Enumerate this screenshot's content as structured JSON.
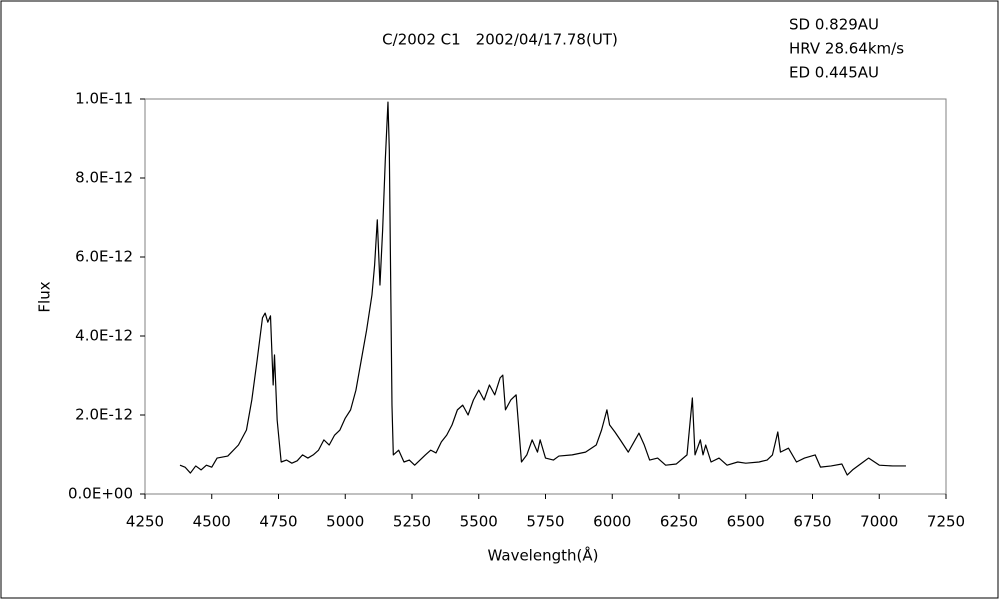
{
  "chart_data": {
    "type": "line",
    "title": "C/2002 C1　2002/04/17.78(UT)",
    "annotations": [
      "SD 0.829AU",
      "HRV 28.64km/s",
      "ED 0.445AU"
    ],
    "x_label": "Wavelength(Å)",
    "y_label": "Flux",
    "color": "#000000",
    "xlim": [
      4250,
      7250
    ],
    "xticks": [
      4250,
      4500,
      4750,
      5000,
      5250,
      5500,
      5750,
      6000,
      6250,
      6500,
      6750,
      7000,
      7250
    ],
    "ylim": [
      0,
      1e-11
    ],
    "yticks": [
      {
        "value": 0,
        "label": "0.0E+00"
      },
      {
        "value": 2e-12,
        "label": "2.0E-12"
      },
      {
        "value": 4e-12,
        "label": "4.0E-12"
      },
      {
        "value": 6e-12,
        "label": "6.0E-12"
      },
      {
        "value": 8e-12,
        "label": "8.0E-12"
      },
      {
        "value": 1e-11,
        "label": "1.0E-11"
      }
    ],
    "x": [
      4381,
      4400,
      4420,
      4440,
      4460,
      4480,
      4500,
      4520,
      4560,
      4600,
      4630,
      4650,
      4670,
      4690,
      4700,
      4710,
      4720,
      4730,
      4735,
      4745,
      4760,
      4780,
      4800,
      4820,
      4840,
      4860,
      4880,
      4900,
      4920,
      4940,
      4960,
      4980,
      5000,
      5020,
      5040,
      5060,
      5080,
      5100,
      5110,
      5120,
      5130,
      5140,
      5150,
      5160,
      5165,
      5175,
      5180,
      5200,
      5220,
      5240,
      5260,
      5280,
      5300,
      5320,
      5340,
      5360,
      5380,
      5400,
      5420,
      5440,
      5460,
      5480,
      5500,
      5520,
      5540,
      5560,
      5580,
      5590,
      5600,
      5620,
      5640,
      5660,
      5680,
      5700,
      5720,
      5730,
      5750,
      5780,
      5800,
      5850,
      5900,
      5940,
      5960,
      5980,
      5990,
      6010,
      6030,
      6060,
      6100,
      6120,
      6140,
      6170,
      6200,
      6240,
      6280,
      6300,
      6310,
      6330,
      6340,
      6350,
      6370,
      6400,
      6430,
      6470,
      6500,
      6550,
      6580,
      6600,
      6620,
      6630,
      6660,
      6690,
      6720,
      6760,
      6780,
      6820,
      6860,
      6880,
      6900,
      6940,
      6960,
      7000,
      7050,
      7100
    ],
    "values": [
      7.3e-13,
      6.8e-13,
      5.3e-13,
      7.1e-13,
      6.1e-13,
      7.3e-13,
      6.8e-13,
      9.1e-13,
      9.6e-13,
      1.24e-12,
      1.62e-12,
      2.38e-12,
      3.39e-12,
      4.46e-12,
      4.58e-12,
      4.35e-12,
      4.51e-12,
      2.76e-12,
      3.52e-12,
      1.87e-12,
      8.1e-13,
      8.6e-13,
      7.8e-13,
      8.4e-13,
      9.9e-13,
      9.1e-13,
      9.9e-13,
      1.11e-12,
      1.37e-12,
      1.24e-12,
      1.49e-12,
      1.62e-12,
      1.92e-12,
      2.13e-12,
      2.63e-12,
      3.39e-12,
      4.15e-12,
      5.04e-12,
      5.8e-12,
      6.94e-12,
      5.29e-12,
      6.68e-12,
      8.46e-12,
      9.92e-12,
      8.71e-12,
      2.25e-12,
      9.9e-13,
      1.11e-12,
      8.1e-13,
      8.6e-13,
      7.3e-13,
      8.6e-13,
      9.9e-13,
      1.11e-12,
      1.04e-12,
      1.32e-12,
      1.49e-12,
      1.75e-12,
      2.13e-12,
      2.25e-12,
      2e-12,
      2.38e-12,
      2.63e-12,
      2.38e-12,
      2.76e-12,
      2.51e-12,
      2.94e-12,
      3.01e-12,
      2.13e-12,
      2.38e-12,
      2.51e-12,
      8.1e-13,
      9.9e-13,
      1.37e-12,
      1.06e-12,
      1.37e-12,
      9.1e-13,
      8.6e-13,
      9.6e-13,
      9.9e-13,
      1.06e-12,
      1.24e-12,
      1.62e-12,
      2.13e-12,
      1.75e-12,
      1.57e-12,
      1.37e-12,
      1.06e-12,
      1.54e-12,
      1.24e-12,
      8.6e-13,
      9.1e-13,
      7.3e-13,
      7.6e-13,
      9.9e-13,
      2.43e-12,
      9.9e-13,
      1.37e-12,
      9.9e-13,
      1.24e-12,
      8.1e-13,
      9.1e-13,
      7.3e-13,
      8.1e-13,
      7.8e-13,
      8.1e-13,
      8.6e-13,
      9.9e-13,
      1.57e-12,
      1.06e-12,
      1.16e-12,
      8.1e-13,
      9.1e-13,
      9.9e-13,
      6.8e-13,
      7.1e-13,
      7.6e-13,
      4.8e-13,
      6.1e-13,
      8.1e-13,
      9.1e-13,
      7.3e-13,
      7.1e-13,
      7.1e-13
    ]
  }
}
